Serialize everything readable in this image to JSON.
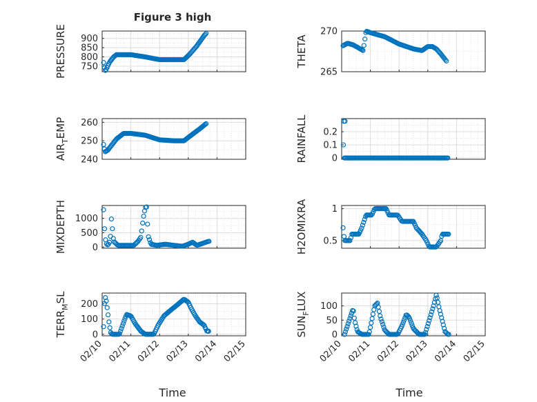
{
  "figure_title": "Figure 3 high",
  "x_axis_label": "Time",
  "x_tick_labels": [
    "02/10",
    "02/11",
    "02/12",
    "02/13",
    "02/14",
    "02/15"
  ],
  "marker_color": "#0072BD",
  "chart_data": [
    {
      "type": "scatter",
      "id": "pressure",
      "title": "Figure 3 high",
      "ylabel": "PRESSURE",
      "xlim": [
        0,
        5
      ],
      "ylim": [
        720,
        940
      ],
      "yticks": [
        750,
        800,
        850,
        900
      ],
      "knots": [
        [
          0.05,
          770
        ],
        [
          0.1,
          725
        ],
        [
          0.15,
          735
        ],
        [
          0.25,
          770
        ],
        [
          0.4,
          800
        ],
        [
          0.5,
          812
        ],
        [
          1.0,
          812
        ],
        [
          1.5,
          800
        ],
        [
          2.0,
          785
        ],
        [
          2.5,
          785
        ],
        [
          2.85,
          785
        ],
        [
          3.05,
          815
        ],
        [
          3.3,
          860
        ],
        [
          3.55,
          915
        ],
        [
          3.7,
          940
        ]
      ],
      "n": 120,
      "step": 0.03
    },
    {
      "type": "scatter",
      "id": "theta",
      "ylabel": "THETA",
      "xlim": [
        0,
        5
      ],
      "ylim": [
        265,
        270
      ],
      "yticks": [
        265,
        270
      ],
      "knots": [
        [
          0.05,
          268.2
        ],
        [
          0.2,
          268.5
        ],
        [
          0.4,
          268.3
        ],
        [
          0.6,
          267.9
        ],
        [
          0.75,
          267.6
        ],
        [
          0.8,
          268.8
        ],
        [
          0.85,
          270
        ],
        [
          1.0,
          269.8
        ],
        [
          1.5,
          269.3
        ],
        [
          2.0,
          268.4
        ],
        [
          2.5,
          267.8
        ],
        [
          2.8,
          267.6
        ],
        [
          3.0,
          268.1
        ],
        [
          3.15,
          268.1
        ],
        [
          3.3,
          267.8
        ],
        [
          3.45,
          267.2
        ],
        [
          3.65,
          266.3
        ],
        [
          3.75,
          265.8
        ]
      ],
      "n": 110,
      "step": 0.033
    },
    {
      "type": "scatter",
      "id": "air_temp",
      "ylabel": "AIR_TEMP",
      "xlim": [
        0,
        5
      ],
      "ylim": [
        240,
        262
      ],
      "yticks": [
        240,
        250,
        260
      ],
      "knots": [
        [
          0.05,
          248
        ],
        [
          0.1,
          244
        ],
        [
          0.2,
          245
        ],
        [
          0.3,
          247
        ],
        [
          0.5,
          251
        ],
        [
          0.75,
          254
        ],
        [
          1.0,
          254
        ],
        [
          1.5,
          253
        ],
        [
          2.0,
          250.5
        ],
        [
          2.5,
          250
        ],
        [
          2.85,
          250
        ],
        [
          3.1,
          253
        ],
        [
          3.4,
          256.5
        ],
        [
          3.6,
          259
        ],
        [
          3.72,
          260.5
        ]
      ],
      "n": 120,
      "step": 0.03
    },
    {
      "type": "scatter",
      "id": "rainfall",
      "ylabel": "RAINFALL",
      "xlim": [
        0,
        5
      ],
      "ylim": [
        -0.01,
        0.3
      ],
      "yticks": [
        0,
        0.1,
        0.2
      ],
      "knots": [
        [
          0.1,
          0
        ],
        [
          3.75,
          0
        ]
      ],
      "n": 110,
      "step": 0.033,
      "extra_points": [
        [
          0.06,
          0.1
        ],
        [
          0.08,
          0.28
        ],
        [
          0.12,
          0.28
        ]
      ]
    },
    {
      "type": "scatter",
      "id": "mixdepth",
      "ylabel": "MIXDEPTH",
      "xlim": [
        0,
        5
      ],
      "ylim": [
        -40,
        1450
      ],
      "yticks": [
        0,
        500,
        1000
      ],
      "knots": [
        [
          0.05,
          1300
        ],
        [
          0.1,
          330
        ],
        [
          0.15,
          120
        ],
        [
          0.2,
          60
        ],
        [
          0.28,
          220
        ],
        [
          0.32,
          1000
        ],
        [
          0.36,
          600
        ],
        [
          0.4,
          200
        ],
        [
          0.55,
          60
        ],
        [
          0.8,
          60
        ],
        [
          1.1,
          60
        ],
        [
          1.25,
          200
        ],
        [
          1.35,
          350
        ],
        [
          1.43,
          1000
        ],
        [
          1.5,
          1380
        ],
        [
          1.55,
          1400
        ],
        [
          1.6,
          400
        ],
        [
          1.7,
          100
        ],
        [
          1.9,
          60
        ],
        [
          2.2,
          100
        ],
        [
          2.5,
          60
        ],
        [
          2.8,
          30
        ],
        [
          3.0,
          100
        ],
        [
          3.15,
          170
        ],
        [
          3.3,
          60
        ],
        [
          3.5,
          130
        ],
        [
          3.7,
          200
        ],
        [
          3.75,
          200
        ]
      ],
      "n": 110,
      "step": 0.034
    },
    {
      "type": "scatter",
      "id": "h2omixra",
      "ylabel": "H2OMIXRA",
      "xlim": [
        0,
        5
      ],
      "ylim": [
        0.38,
        1.05
      ],
      "yticks": [
        0.5,
        1
      ],
      "knots": [
        [
          0.05,
          0.7
        ],
        [
          0.1,
          0.5
        ],
        [
          0.3,
          0.5
        ],
        [
          0.35,
          0.6
        ],
        [
          0.6,
          0.6
        ],
        [
          0.7,
          0.7
        ],
        [
          0.85,
          0.9
        ],
        [
          1.05,
          0.9
        ],
        [
          1.15,
          1.0
        ],
        [
          1.55,
          1.0
        ],
        [
          1.65,
          0.9
        ],
        [
          1.95,
          0.9
        ],
        [
          2.1,
          0.8
        ],
        [
          2.5,
          0.8
        ],
        [
          2.6,
          0.7
        ],
        [
          2.8,
          0.6
        ],
        [
          2.95,
          0.5
        ],
        [
          3.05,
          0.4
        ],
        [
          3.3,
          0.4
        ],
        [
          3.45,
          0.5
        ],
        [
          3.5,
          0.6
        ],
        [
          3.75,
          0.6
        ]
      ],
      "n": 110,
      "step": 0.034
    },
    {
      "type": "scatter",
      "id": "terr_msl",
      "ylabel": "TERR_MSL",
      "xlim": [
        0,
        5
      ],
      "ylim": [
        -10,
        270
      ],
      "yticks": [
        0,
        100,
        200
      ],
      "knots": [
        [
          0.05,
          50
        ],
        [
          0.08,
          200
        ],
        [
          0.12,
          250
        ],
        [
          0.17,
          180
        ],
        [
          0.25,
          60
        ],
        [
          0.3,
          10
        ],
        [
          0.35,
          0
        ],
        [
          0.6,
          0
        ],
        [
          0.75,
          80
        ],
        [
          0.85,
          130
        ],
        [
          1.0,
          120
        ],
        [
          1.15,
          70
        ],
        [
          1.35,
          20
        ],
        [
          1.5,
          0
        ],
        [
          1.8,
          0
        ],
        [
          1.95,
          60
        ],
        [
          2.15,
          120
        ],
        [
          2.4,
          160
        ],
        [
          2.6,
          190
        ],
        [
          2.85,
          230
        ],
        [
          3.0,
          210
        ],
        [
          3.1,
          170
        ],
        [
          3.25,
          120
        ],
        [
          3.4,
          80
        ],
        [
          3.55,
          60
        ],
        [
          3.65,
          20
        ],
        [
          3.72,
          20
        ]
      ],
      "n": 120,
      "step": 0.031
    },
    {
      "type": "scatter",
      "id": "sun_flux",
      "ylabel": "SUN_FLUX",
      "xlim": [
        0,
        5
      ],
      "ylim": [
        -5,
        145
      ],
      "yticks": [
        0,
        50,
        100
      ],
      "knots": [
        [
          0.1,
          0
        ],
        [
          0.2,
          30
        ],
        [
          0.3,
          60
        ],
        [
          0.4,
          90
        ],
        [
          0.45,
          50
        ],
        [
          0.55,
          10
        ],
        [
          0.7,
          0
        ],
        [
          0.95,
          0
        ],
        [
          1.05,
          50
        ],
        [
          1.15,
          100
        ],
        [
          1.25,
          110
        ],
        [
          1.35,
          60
        ],
        [
          1.5,
          15
        ],
        [
          1.65,
          0
        ],
        [
          1.95,
          0
        ],
        [
          2.1,
          30
        ],
        [
          2.25,
          70
        ],
        [
          2.35,
          60
        ],
        [
          2.5,
          20
        ],
        [
          2.7,
          0
        ],
        [
          2.9,
          0
        ],
        [
          3.05,
          50
        ],
        [
          3.2,
          100
        ],
        [
          3.3,
          140
        ],
        [
          3.4,
          90
        ],
        [
          3.5,
          50
        ],
        [
          3.6,
          10
        ],
        [
          3.7,
          0
        ],
        [
          3.75,
          0
        ]
      ],
      "n": 120,
      "step": 0.031
    }
  ]
}
